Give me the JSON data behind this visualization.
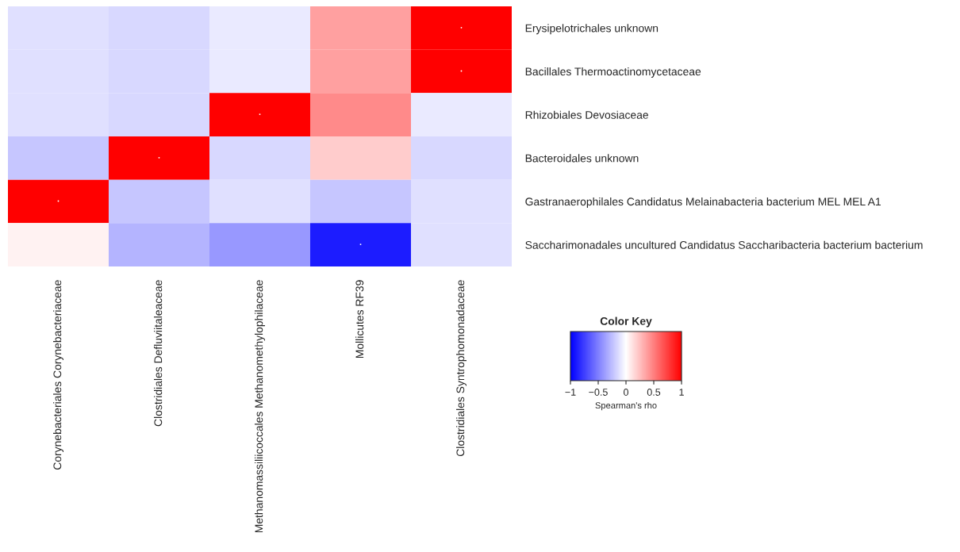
{
  "chart_data": {
    "type": "heatmap",
    "categories": [
      "Corynebacteriales Corynebacteriaceae",
      "Clostridiales Defluviitaleaceae",
      "Methanomassiliicoccales Methanomethylophilaceae",
      "Mollicutes RF39",
      "Clostridiales Syntrophomonadaceae"
    ],
    "y_categories": [
      "Erysipelotrichales unknown",
      "Bacillales Thermoactinomycetaceae",
      "Rhizobiales Devosiaceae",
      "Bacteroidales unknown",
      "Gastranaerophilales Candidatus Melainabacteria bacterium MEL MEL A1",
      "Saccharimonadales uncultured Candidatus Saccharibacteria bacterium bacterium"
    ],
    "cells": [
      [
        -0.12,
        -0.15,
        -0.08,
        0.37,
        1
      ],
      [
        -0.12,
        -0.15,
        -0.08,
        0.37,
        1
      ],
      [
        -0.12,
        -0.15,
        1,
        0.46,
        -0.08
      ],
      [
        -0.22,
        1,
        -0.15,
        0.2,
        -0.15
      ],
      [
        1,
        -0.22,
        -0.12,
        -0.22,
        -0.12
      ],
      [
        0.05,
        -0.29,
        -0.4,
        -0.89,
        -0.12
      ]
    ],
    "cell_labels": [
      [
        null,
        null,
        null,
        null,
        "•"
      ],
      [
        null,
        null,
        null,
        null,
        "•"
      ],
      [
        null,
        null,
        "•",
        null,
        null
      ],
      [
        null,
        "•",
        null,
        null,
        null
      ],
      [
        "•",
        null,
        null,
        null,
        null
      ],
      [
        null,
        null,
        null,
        "•",
        null
      ]
    ],
    "clim": [
      -1,
      1
    ],
    "cticks": [
      {
        "value": -1,
        "label": "−1"
      },
      {
        "value": -0.5,
        "label": "−0.5"
      },
      0,
      0.5,
      1
    ],
    "legend_title": "Color Key",
    "clabel": "Spearman's rho"
  }
}
